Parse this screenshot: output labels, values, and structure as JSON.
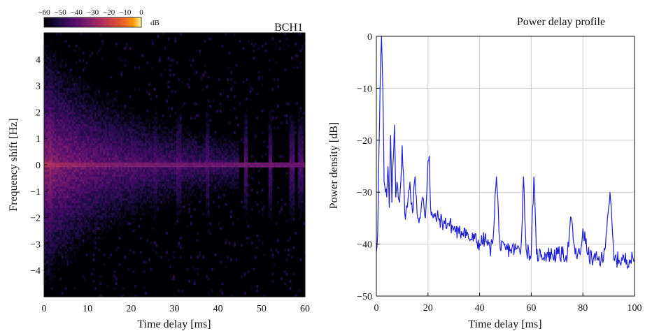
{
  "chart_data": [
    {
      "type": "heatmap",
      "title": "BCH1",
      "xlabel": "Time delay [ms]",
      "ylabel": "Frequency shift [Hz]",
      "xlim": [
        0,
        60
      ],
      "ylim": [
        -5,
        5
      ],
      "xticks": [
        0,
        10,
        20,
        30,
        40,
        50,
        60
      ],
      "yticks": [
        -4,
        -3,
        -2,
        -1,
        0,
        1,
        2,
        3,
        4
      ],
      "colorbar": {
        "label": "dB",
        "ticks": [
          "−60",
          "−50",
          "−40",
          "−30",
          "−20",
          "−10",
          "0"
        ],
        "range": [
          -60,
          0
        ],
        "colormap": "inferno",
        "placement": "top-left"
      },
      "features": {
        "strong_component_delay_ms": 1.5,
        "doppler_ridge_hz": 0,
        "spread_region_ms": [
          0,
          45
        ],
        "spread_hz": [
          -1.5,
          1.5
        ],
        "discrete_paths_ms": [
          1.5,
          5.5,
          7,
          10,
          12.5,
          16.5,
          20.5,
          25.5,
          31,
          37.5,
          46.5,
          52,
          57,
          59
        ]
      }
    },
    {
      "type": "line",
      "title": "Power delay profile",
      "xlabel": "Time delay [ms]",
      "ylabel": "Power density  [dB]",
      "xlim": [
        0,
        100
      ],
      "ylim": [
        -50,
        0
      ],
      "xticks": [
        0,
        20,
        40,
        60,
        80,
        100
      ],
      "yticks": [
        0,
        -10,
        -20,
        -30,
        -40,
        -50
      ],
      "grid": true,
      "series": [
        {
          "color": "#1f1fd6",
          "x": [
            0,
            0.5,
            1,
            1.5,
            2,
            2.5,
            3,
            3.5,
            4,
            4.5,
            5,
            5.5,
            6,
            6.5,
            7,
            7.5,
            8,
            9,
            10,
            11,
            12,
            13,
            14,
            15,
            16,
            17,
            18,
            19,
            20,
            20.5,
            21,
            22,
            24,
            26,
            28,
            30,
            32,
            34,
            36,
            38,
            40,
            42,
            44,
            45,
            46.5,
            48,
            50,
            52,
            54,
            56,
            57,
            58,
            60,
            61,
            62,
            63,
            64,
            66,
            68,
            70,
            72,
            74,
            75.5,
            77,
            79,
            80,
            82,
            84,
            86,
            88,
            89.5,
            90.5,
            92,
            94,
            96,
            98,
            100
          ],
          "y": [
            -41.5,
            -38,
            -22,
            -8,
            0,
            -10,
            -28,
            -30,
            -31,
            -25,
            -33,
            -19,
            -32,
            -24,
            -17,
            -31,
            -28,
            -32,
            -21,
            -34,
            -33,
            -28,
            -34,
            -27,
            -35,
            -35,
            -31,
            -35,
            -24,
            -23,
            -33,
            -35,
            -35,
            -36,
            -36,
            -37,
            -38,
            -37,
            -39,
            -39,
            -40,
            -39,
            -41,
            -40,
            -27,
            -41,
            -41,
            -41,
            -41,
            -41,
            -27,
            -41,
            -42,
            -27,
            -42,
            -42,
            -42,
            -42,
            -42,
            -42,
            -42,
            -42,
            -35,
            -42,
            -42,
            -37,
            -42,
            -43,
            -43,
            -43,
            -35,
            -30,
            -43,
            -43,
            -43,
            -43,
            -43
          ]
        }
      ]
    }
  ]
}
